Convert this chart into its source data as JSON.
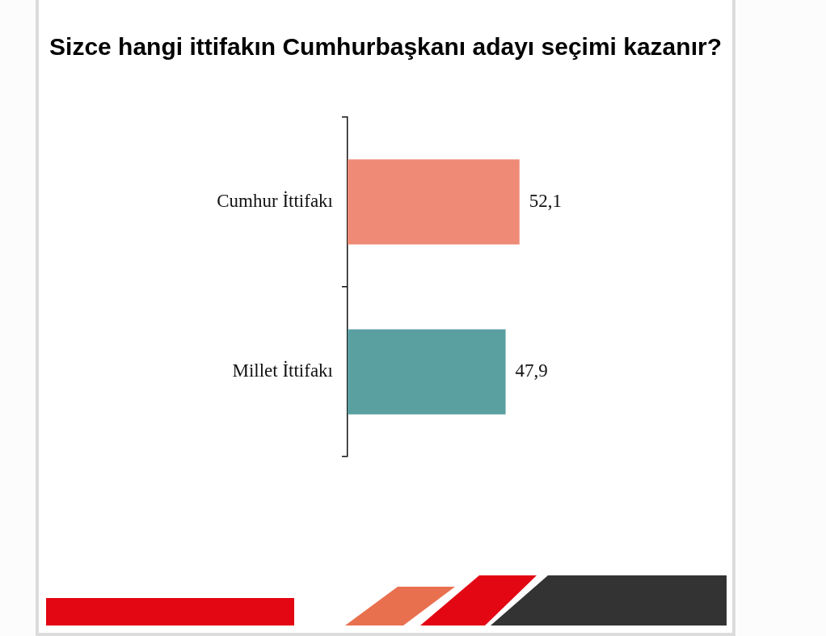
{
  "chart_data": {
    "type": "bar",
    "orientation": "horizontal",
    "title": "Sizce hangi ittifakın Cumhurbaşkanı adayı seçimi kazanır?",
    "categories": [
      "Cumhur İttifakı",
      "Millet İttifakı"
    ],
    "values": [
      52.1,
      47.9
    ],
    "colors": [
      "#ee8a76",
      "#5aa0a1"
    ],
    "value_labels": [
      "52,1",
      "47,9"
    ],
    "tick_labels": "y"
  }
}
